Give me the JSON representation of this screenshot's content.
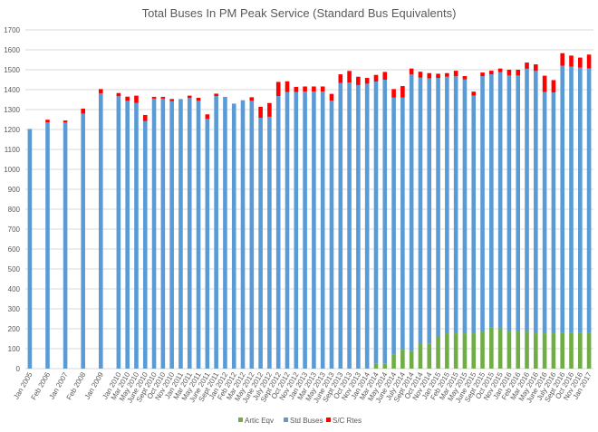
{
  "chart_data": {
    "type": "bar",
    "stacked": true,
    "title": "Total Buses In PM Peak Service (Standard Bus Equivalents)",
    "xlabel": "",
    "ylabel": "",
    "ylim": [
      0,
      1700
    ],
    "yticks": [
      0,
      100,
      200,
      300,
      400,
      500,
      600,
      700,
      800,
      900,
      1000,
      1100,
      1200,
      1300,
      1400,
      1500,
      1600,
      1700
    ],
    "grid": true,
    "legend_position": "bottom",
    "categories": [
      "Jan 2005",
      "",
      "Feb 2006",
      "",
      "Jan 2007",
      "",
      "Feb 2008",
      "",
      "Jan 2009",
      "",
      "Jan 2010",
      "Mar 2010",
      "May 2010",
      "June 2010",
      "Sept 2010",
      "Oct 2010",
      "Nov 2010",
      "Jan 2011",
      "Mar 2011",
      "May 2011",
      "June 2011",
      "Sept 2011",
      "Jan 2012",
      "Feb 2012",
      "Mar 2012",
      "May 2012",
      "June 2012",
      "July 2012",
      "Sept 2012",
      "Oct 2012",
      "Nov 2012",
      "Jan 2013",
      "Mar 2013",
      "May 2013",
      "June 2013",
      "Sept 2013",
      "Oct 2013",
      "Nov 2013",
      "Jan 2014",
      "Mar 2014",
      "May 2014",
      "June 2014",
      "July 2014",
      "Sept 2014",
      "Oct 2014",
      "Nov 2014",
      "Jan 2015",
      "Feb 2015",
      "Mar 2015",
      "May 2015",
      "June 2015",
      "Sept 2015",
      "Oct 2015",
      "Nov 2015",
      "Jan 2016",
      "Feb 2016",
      "Mar 2016",
      "May 2016",
      "June 2016",
      "July 2016",
      "Sept 2016",
      "Oct 2016",
      "Nov 2016",
      "Jan 2017"
    ],
    "series": [
      {
        "name": "Artic Eqv",
        "color": "#70AD47",
        "values": [
          0,
          null,
          0,
          null,
          0,
          null,
          0,
          null,
          0,
          null,
          0,
          0,
          0,
          0,
          0,
          0,
          0,
          0,
          0,
          0,
          0,
          0,
          0,
          0,
          0,
          0,
          0,
          0,
          0,
          0,
          0,
          0,
          0,
          0,
          0,
          0,
          0,
          0,
          0,
          26,
          26,
          70,
          95,
          88,
          123,
          126,
          159,
          177,
          177,
          177,
          177,
          186,
          205,
          202,
          186,
          186,
          186,
          177,
          177,
          177,
          180,
          180,
          180,
          180
        ]
      },
      {
        "name": "Std Buses",
        "color": "#5B9BD5",
        "values": [
          1203,
          null,
          1236,
          null,
          1235,
          null,
          1280,
          null,
          1382,
          null,
          1367,
          1344,
          1333,
          1242,
          1355,
          1355,
          1342,
          1353,
          1358,
          1344,
          1253,
          1368,
          1364,
          1330,
          1347,
          1344,
          1259,
          1264,
          1368,
          1388,
          1388,
          1391,
          1391,
          1391,
          1345,
          1433,
          1435,
          1423,
          1430,
          1415,
          1424,
          1290,
          1265,
          1388,
          1337,
          1331,
          1300,
          1288,
          1290,
          1274,
          1193,
          1282,
          1272,
          1286,
          1285,
          1285,
          1319,
          1317,
          1211,
          1209,
          1340,
          1336,
          1331,
          1327
        ]
      },
      {
        "name": "S/C Rtes",
        "color": "#FF0000",
        "values": [
          0,
          null,
          13,
          null,
          10,
          null,
          25,
          null,
          21,
          null,
          16,
          21,
          37,
          31,
          9,
          9,
          11,
          0,
          12,
          15,
          23,
          12,
          0,
          0,
          0,
          18,
          55,
          69,
          71,
          54,
          26,
          25,
          25,
          25,
          34,
          44,
          59,
          42,
          29,
          33,
          39,
          43,
          58,
          30,
          30,
          26,
          21,
          18,
          28,
          17,
          20,
          18,
          18,
          18,
          29,
          29,
          31,
          33,
          82,
          62,
          63,
          55,
          50,
          69
        ]
      }
    ]
  }
}
